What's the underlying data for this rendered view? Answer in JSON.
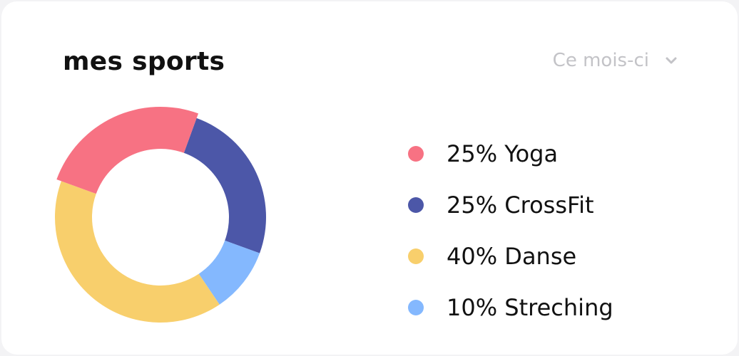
{
  "card": {
    "title": "mes sports",
    "period_selector": {
      "label": "Ce mois-ci",
      "icon": "chevron-down-icon"
    }
  },
  "colors": {
    "yoga": "#f77283",
    "crossfit": "#4c57a8",
    "danse": "#f8cf6c",
    "streching": "#84b8fe"
  },
  "chart_data": {
    "type": "pie",
    "variant": "donut",
    "categories": [
      "Yoga",
      "CrossFit",
      "Danse",
      "Streching"
    ],
    "values": [
      25,
      25,
      40,
      10
    ],
    "unit": "%",
    "legend": {
      "position": "right",
      "entries": [
        "25% Yoga",
        "25% CrossFit",
        "40% Danse",
        "10% Streching"
      ]
    }
  }
}
